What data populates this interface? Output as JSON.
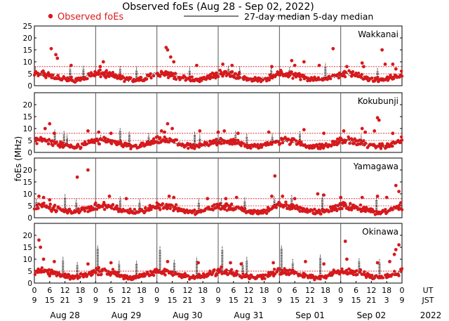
{
  "chart_data": {
    "type": "scatter",
    "title": "Observed foEs (Aug 28 - Sep 02, 2022)",
    "ylabel": "foEs (MHz)",
    "ylim": [
      0,
      25
    ],
    "yticks": [
      "0",
      "5",
      "10",
      "15",
      "20",
      "25"
    ],
    "yticks_short": [
      "0",
      "5",
      "10",
      "15",
      "20"
    ],
    "xlim_hours": [
      0,
      144
    ],
    "xtick_ut": [
      "0",
      "6",
      "12",
      "18",
      "0",
      "6",
      "12",
      "18",
      "0",
      "6",
      "12",
      "18",
      "0",
      "6",
      "12",
      "18",
      "0",
      "6",
      "12",
      "18",
      "0",
      "6",
      "12",
      "18",
      "0"
    ],
    "xtick_jst": [
      "9",
      "15",
      "21",
      "3",
      "9",
      "15",
      "21",
      "3",
      "9",
      "15",
      "21",
      "3",
      "9",
      "15",
      "21",
      "3",
      "9",
      "15",
      "21",
      "3",
      "9",
      "15",
      "21",
      "3",
      "9"
    ],
    "ut_label": "UT",
    "jst_label": "JST",
    "year": "2022",
    "days": [
      "Aug 28",
      "Aug 29",
      "Aug 30",
      "Aug 31",
      "Sep 01",
      "Sep 02"
    ],
    "legend": {
      "observed": "Observed foEs",
      "median27": "27-day median",
      "median5": "5-day median"
    },
    "colors": {
      "observed": "#d7191c",
      "median5": "#000000",
      "median27": "#d7191c",
      "day_line": "#555555"
    },
    "panels": [
      {
        "station": "Wakkanai",
        "median27": [
          5.0,
          8.0
        ],
        "baseline": [
          5,
          5,
          4.5,
          4,
          3,
          2.5,
          2.5,
          3,
          4,
          5
        ],
        "spikes": [
          [
            1.1,
            15.5
          ],
          [
            1.4,
            13.0
          ],
          [
            1.5,
            11.5
          ],
          [
            2.4,
            8.5
          ],
          [
            4.3,
            8.0
          ],
          [
            4.5,
            10.0
          ],
          [
            8.6,
            16.0
          ],
          [
            8.7,
            15.0
          ],
          [
            8.9,
            12.0
          ],
          [
            9.1,
            10.0
          ],
          [
            10.6,
            8.5
          ],
          [
            12.3,
            9.0
          ],
          [
            12.9,
            8.5
          ],
          [
            15.5,
            8.0
          ],
          [
            16.8,
            10.5
          ],
          [
            17.0,
            8.5
          ],
          [
            17.6,
            10.0
          ],
          [
            18.6,
            8.5
          ],
          [
            19.5,
            15.5
          ],
          [
            20.4,
            8.0
          ],
          [
            21.4,
            9.5
          ],
          [
            21.5,
            8.0
          ],
          [
            22.7,
            15.0
          ],
          [
            22.9,
            9.0
          ],
          [
            23.4,
            9.0
          ],
          [
            23.6,
            7.0
          ]
        ],
        "m5_spikes": [
          [
            0.1,
            8.0
          ],
          [
            3.5,
            8.5
          ],
          [
            4.8,
            8.5
          ],
          [
            8.4,
            8.5
          ],
          [
            10.0,
            8.0
          ],
          [
            15.2,
            8.0
          ],
          [
            19.0,
            8.5
          ],
          [
            20.1,
            8.0
          ],
          [
            23.2,
            8.0
          ],
          [
            25.0,
            8.0
          ],
          [
            28.5,
            9.5
          ],
          [
            33.6,
            7.5
          ]
        ]
      },
      {
        "station": "Kokubunji",
        "median27": [
          5.0,
          8.0
        ],
        "baseline": [
          5,
          5,
          4.5,
          4,
          3,
          2.5,
          2.5,
          3,
          4,
          5
        ],
        "spikes": [
          [
            0.7,
            10.0
          ],
          [
            1.0,
            12.0
          ],
          [
            1.3,
            8.0
          ],
          [
            3.5,
            9.0
          ],
          [
            4.2,
            8.5
          ],
          [
            5.0,
            8.0
          ],
          [
            8.3,
            9.0
          ],
          [
            8.5,
            8.5
          ],
          [
            8.7,
            12.0
          ],
          [
            9.0,
            10.0
          ],
          [
            10.8,
            9.0
          ],
          [
            12.0,
            8.5
          ],
          [
            12.4,
            9.0
          ],
          [
            13.3,
            8.0
          ],
          [
            15.3,
            8.5
          ],
          [
            17.6,
            9.5
          ],
          [
            18.9,
            8.0
          ],
          [
            20.2,
            9.0
          ],
          [
            21.4,
            10.0
          ],
          [
            21.6,
            8.5
          ],
          [
            22.2,
            9.0
          ],
          [
            22.4,
            14.5
          ],
          [
            22.5,
            13.5
          ],
          [
            23.4,
            8.0
          ]
        ],
        "m5_spikes": [
          [
            2.0,
            9.5
          ],
          [
            2.9,
            9.0
          ],
          [
            3.2,
            7.5
          ],
          [
            6.5,
            7.5
          ],
          [
            8.4,
            10.5
          ],
          [
            9.3,
            9.0
          ],
          [
            11.2,
            8.0
          ],
          [
            15.7,
            9.0
          ],
          [
            16.2,
            7.5
          ],
          [
            19.7,
            9.0
          ],
          [
            20.8,
            8.0
          ],
          [
            23.3,
            8.0
          ],
          [
            26.0,
            9.0
          ],
          [
            32.0,
            7.5
          ]
        ]
      },
      {
        "station": "Yamagawa",
        "median27": [
          5.0,
          8.0
        ],
        "baseline": [
          5,
          5,
          4.5,
          4,
          3,
          2.5,
          2.5,
          3,
          4,
          5
        ],
        "spikes": [
          [
            0.3,
            9.0
          ],
          [
            0.6,
            8.5
          ],
          [
            1.0,
            7.5
          ],
          [
            2.8,
            17.0
          ],
          [
            3.5,
            20.0
          ],
          [
            4.9,
            9.0
          ],
          [
            6.0,
            8.0
          ],
          [
            8.8,
            9.0
          ],
          [
            9.1,
            8.5
          ],
          [
            11.3,
            8.0
          ],
          [
            12.5,
            8.0
          ],
          [
            13.2,
            8.5
          ],
          [
            15.5,
            9.0
          ],
          [
            15.7,
            17.5
          ],
          [
            16.2,
            9.0
          ],
          [
            17.0,
            8.0
          ],
          [
            18.5,
            10.0
          ],
          [
            18.9,
            9.5
          ],
          [
            20.0,
            8.5
          ],
          [
            21.4,
            8.5
          ],
          [
            22.4,
            9.0
          ],
          [
            23.0,
            8.5
          ],
          [
            23.6,
            13.5
          ],
          [
            23.8,
            11.0
          ]
        ],
        "m5_spikes": [
          [
            0.2,
            8.0
          ],
          [
            3.0,
            10.0
          ],
          [
            4.1,
            8.0
          ],
          [
            8.4,
            9.0
          ],
          [
            10.3,
            8.0
          ],
          [
            16.1,
            8.0
          ],
          [
            18.3,
            8.0
          ],
          [
            20.6,
            8.5
          ],
          [
            23.5,
            9.0
          ],
          [
            25.2,
            9.5
          ],
          [
            28.2,
            10.0
          ],
          [
            33.5,
            9.0
          ]
        ]
      },
      {
        "station": "Okinawa",
        "median27": [
          5.0,
          5.0
        ],
        "baseline": [
          5,
          5,
          4.5,
          4,
          3,
          2.5,
          2.5,
          3,
          4,
          5
        ],
        "spikes": [
          [
            0.3,
            18.0
          ],
          [
            0.4,
            15.0
          ],
          [
            0.6,
            10.0
          ],
          [
            1.3,
            9.0
          ],
          [
            3.5,
            8.0
          ],
          [
            5.0,
            8.5
          ],
          [
            8.7,
            9.0
          ],
          [
            10.7,
            8.5
          ],
          [
            12.8,
            8.5
          ],
          [
            13.5,
            8.0
          ],
          [
            15.6,
            8.5
          ],
          [
            17.7,
            9.0
          ],
          [
            18.9,
            8.0
          ],
          [
            20.3,
            17.5
          ],
          [
            20.4,
            10.0
          ],
          [
            22.4,
            8.5
          ],
          [
            23.2,
            9.0
          ],
          [
            23.5,
            12.0
          ],
          [
            23.6,
            14.0
          ],
          [
            23.8,
            16.0
          ]
        ],
        "m5_spikes": [
          [
            2.8,
            11.0
          ],
          [
            4.2,
            9.0
          ],
          [
            6.2,
            16.0
          ],
          [
            8.3,
            9.5
          ],
          [
            10.0,
            9.5
          ],
          [
            12.3,
            15.5
          ],
          [
            13.7,
            10.0
          ],
          [
            15.9,
            11.0
          ],
          [
            18.4,
            15.5
          ],
          [
            20.4,
            9.0
          ],
          [
            20.8,
            11.0
          ],
          [
            24.2,
            16.0
          ],
          [
            25.3,
            10.0
          ],
          [
            28.0,
            12.0
          ],
          [
            31.8,
            10.5
          ],
          [
            33.8,
            10.0
          ]
        ]
      }
    ]
  }
}
